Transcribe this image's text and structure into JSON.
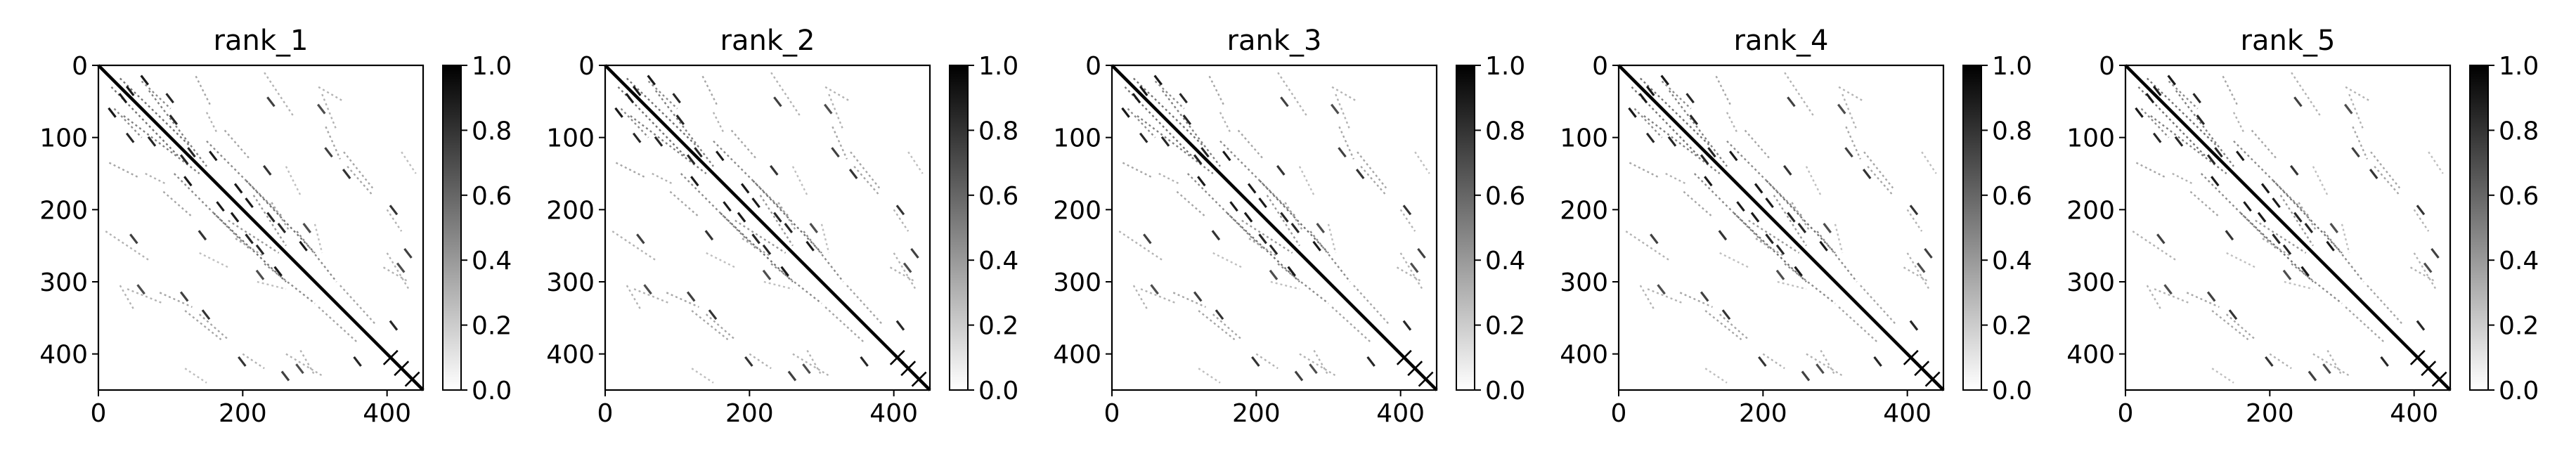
{
  "chart_data": [
    {
      "type": "heatmap",
      "title": "rank_1",
      "xlim": [
        0,
        450
      ],
      "ylim": [
        450,
        0
      ],
      "xticks": [
        0,
        200,
        400
      ],
      "yticks": [
        0,
        100,
        200,
        300,
        400
      ],
      "colorbar": {
        "range": [
          0.0,
          1.0
        ],
        "ticks": [
          "0.0",
          "0.2",
          "0.4",
          "0.6",
          "0.8",
          "1.0"
        ]
      },
      "colormap": "gray_r",
      "description_values": {
        "matrix_size": 450,
        "diagonal_value": 1.0,
        "background_value": 0.0
      }
    },
    {
      "type": "heatmap",
      "title": "rank_2",
      "xlim": [
        0,
        450
      ],
      "ylim": [
        450,
        0
      ],
      "xticks": [
        0,
        200,
        400
      ],
      "yticks": [
        0,
        100,
        200,
        300,
        400
      ],
      "colorbar": {
        "range": [
          0.0,
          1.0
        ],
        "ticks": [
          "0.0",
          "0.2",
          "0.4",
          "0.6",
          "0.8",
          "1.0"
        ]
      },
      "colormap": "gray_r",
      "description_values": {
        "matrix_size": 450,
        "diagonal_value": 1.0,
        "background_value": 0.0
      }
    },
    {
      "type": "heatmap",
      "title": "rank_3",
      "xlim": [
        0,
        450
      ],
      "ylim": [
        450,
        0
      ],
      "xticks": [
        0,
        200,
        400
      ],
      "yticks": [
        0,
        100,
        200,
        300,
        400
      ],
      "colorbar": {
        "range": [
          0.0,
          1.0
        ],
        "ticks": [
          "0.0",
          "0.2",
          "0.4",
          "0.6",
          "0.8",
          "1.0"
        ]
      },
      "colormap": "gray_r",
      "description_values": {
        "matrix_size": 450,
        "diagonal_value": 1.0,
        "background_value": 0.0
      }
    },
    {
      "type": "heatmap",
      "title": "rank_4",
      "xlim": [
        0,
        450
      ],
      "ylim": [
        450,
        0
      ],
      "xticks": [
        0,
        200,
        400
      ],
      "yticks": [
        0,
        100,
        200,
        300,
        400
      ],
      "colorbar": {
        "range": [
          0.0,
          1.0
        ],
        "ticks": [
          "0.0",
          "0.2",
          "0.4",
          "0.6",
          "0.8",
          "1.0"
        ]
      },
      "colormap": "gray_r",
      "description_values": {
        "matrix_size": 450,
        "diagonal_value": 1.0,
        "background_value": 0.0
      }
    },
    {
      "type": "heatmap",
      "title": "rank_5",
      "xlim": [
        0,
        450
      ],
      "ylim": [
        450,
        0
      ],
      "xticks": [
        0,
        200,
        400
      ],
      "yticks": [
        0,
        100,
        200,
        300,
        400
      ],
      "colorbar": {
        "range": [
          0.0,
          1.0
        ],
        "ticks": [
          "0.0",
          "0.2",
          "0.4",
          "0.6",
          "0.8",
          "1.0"
        ]
      },
      "colormap": "gray_r",
      "description_values": {
        "matrix_size": 450,
        "diagonal_value": 1.0,
        "background_value": 0.0
      }
    }
  ],
  "contact_features": [
    {
      "kind": "segment",
      "from": [
        18,
        30
      ],
      "to": [
        110,
        125
      ],
      "value": 0.55
    },
    {
      "kind": "segment",
      "from": [
        22,
        60
      ],
      "to": [
        60,
        100
      ],
      "value": 0.45
    },
    {
      "kind": "segment",
      "from": [
        70,
        35
      ],
      "to": [
        150,
        140
      ],
      "value": 0.5
    },
    {
      "kind": "segment",
      "from": [
        105,
        150
      ],
      "to": [
        210,
        255
      ],
      "value": 0.45
    },
    {
      "kind": "segment",
      "from": [
        160,
        205
      ],
      "to": [
        260,
        300
      ],
      "value": 0.55
    },
    {
      "kind": "segment",
      "from": [
        180,
        215
      ],
      "to": [
        250,
        260
      ],
      "value": 0.4
    },
    {
      "kind": "segment",
      "from": [
        230,
        275
      ],
      "to": [
        300,
        330
      ],
      "value": 0.45
    },
    {
      "kind": "segment",
      "from": [
        305,
        335
      ],
      "to": [
        360,
        385
      ],
      "value": 0.35
    },
    {
      "kind": "segment",
      "from": [
        135,
        15
      ],
      "to": [
        155,
        55
      ],
      "value": 0.35
    },
    {
      "kind": "segment",
      "from": [
        150,
        65
      ],
      "to": [
        165,
        95
      ],
      "value": 0.3
    },
    {
      "kind": "segment",
      "from": [
        310,
        40
      ],
      "to": [
        330,
        90
      ],
      "value": 0.3
    },
    {
      "kind": "segment",
      "from": [
        230,
        10
      ],
      "to": [
        270,
        70
      ],
      "value": 0.3
    },
    {
      "kind": "segment",
      "from": [
        260,
        140
      ],
      "to": [
        280,
        180
      ],
      "value": 0.25
    },
    {
      "kind": "segment",
      "from": [
        190,
        240
      ],
      "to": [
        230,
        265
      ],
      "value": 0.35
    },
    {
      "kind": "segment",
      "from": [
        90,
        175
      ],
      "to": [
        130,
        210
      ],
      "value": 0.35
    },
    {
      "kind": "segment",
      "from": [
        30,
        305
      ],
      "to": [
        50,
        340
      ],
      "value": 0.3
    },
    {
      "kind": "segment",
      "from": [
        85,
        315
      ],
      "to": [
        130,
        335
      ],
      "value": 0.35
    },
    {
      "kind": "segment",
      "from": [
        140,
        345
      ],
      "to": [
        180,
        380
      ],
      "value": 0.35
    },
    {
      "kind": "segment",
      "from": [
        400,
        260
      ],
      "to": [
        430,
        310
      ],
      "value": 0.3
    },
    {
      "kind": "segment",
      "from": [
        340,
        120
      ],
      "to": [
        380,
        170
      ],
      "value": 0.35
    },
    {
      "kind": "segment",
      "from": [
        300,
        220
      ],
      "to": [
        310,
        260
      ],
      "value": 0.25
    },
    {
      "kind": "segment",
      "from": [
        280,
        395
      ],
      "to": [
        300,
        430
      ],
      "value": 0.3
    },
    {
      "kind": "segment",
      "from": [
        200,
        400
      ],
      "to": [
        230,
        420
      ],
      "value": 0.3
    },
    {
      "kind": "segment",
      "from": [
        420,
        120
      ],
      "to": [
        440,
        150
      ],
      "value": 0.25
    },
    {
      "kind": "mark",
      "at": [
        35,
        45
      ],
      "value": 0.9
    },
    {
      "kind": "mark",
      "at": [
        65,
        20
      ],
      "value": 0.9
    },
    {
      "kind": "mark",
      "at": [
        100,
        45
      ],
      "value": 0.85
    },
    {
      "kind": "mark",
      "at": [
        120,
        130
      ],
      "value": 0.85
    },
    {
      "kind": "mark",
      "at": [
        125,
        160
      ],
      "value": 0.9
    },
    {
      "kind": "mark",
      "at": [
        170,
        195
      ],
      "value": 0.9
    },
    {
      "kind": "mark",
      "at": [
        190,
        210
      ],
      "value": 0.9
    },
    {
      "kind": "mark",
      "at": [
        210,
        240
      ],
      "value": 0.85
    },
    {
      "kind": "mark",
      "at": [
        225,
        255
      ],
      "value": 0.85
    },
    {
      "kind": "mark",
      "at": [
        250,
        285
      ],
      "value": 0.9
    },
    {
      "kind": "mark",
      "at": [
        145,
        235
      ],
      "value": 0.8
    },
    {
      "kind": "mark",
      "at": [
        150,
        345
      ],
      "value": 0.8
    },
    {
      "kind": "mark",
      "at": [
        200,
        410
      ],
      "value": 0.8
    },
    {
      "kind": "mark",
      "at": [
        360,
        410
      ],
      "value": 0.85
    },
    {
      "kind": "mark",
      "at": [
        75,
        105
      ],
      "value": 0.85
    },
    {
      "kind": "mark",
      "at": [
        240,
        50
      ],
      "value": 0.75
    },
    {
      "kind": "mark",
      "at": [
        320,
        120
      ],
      "value": 0.75
    },
    {
      "kind": "mark",
      "at": [
        290,
        225
      ],
      "value": 0.7
    },
    {
      "kind": "mark",
      "at": [
        60,
        310
      ],
      "value": 0.7
    },
    {
      "kind": "mark",
      "at": [
        430,
        260
      ],
      "value": 0.75
    },
    {
      "kind": "mark",
      "at": [
        420,
        280
      ],
      "value": 0.7
    },
    {
      "kind": "cross",
      "at": [
        405,
        405
      ],
      "value": 1.0
    },
    {
      "kind": "cross",
      "at": [
        420,
        420
      ],
      "value": 1.0
    },
    {
      "kind": "cross",
      "at": [
        435,
        435
      ],
      "value": 1.0
    }
  ]
}
